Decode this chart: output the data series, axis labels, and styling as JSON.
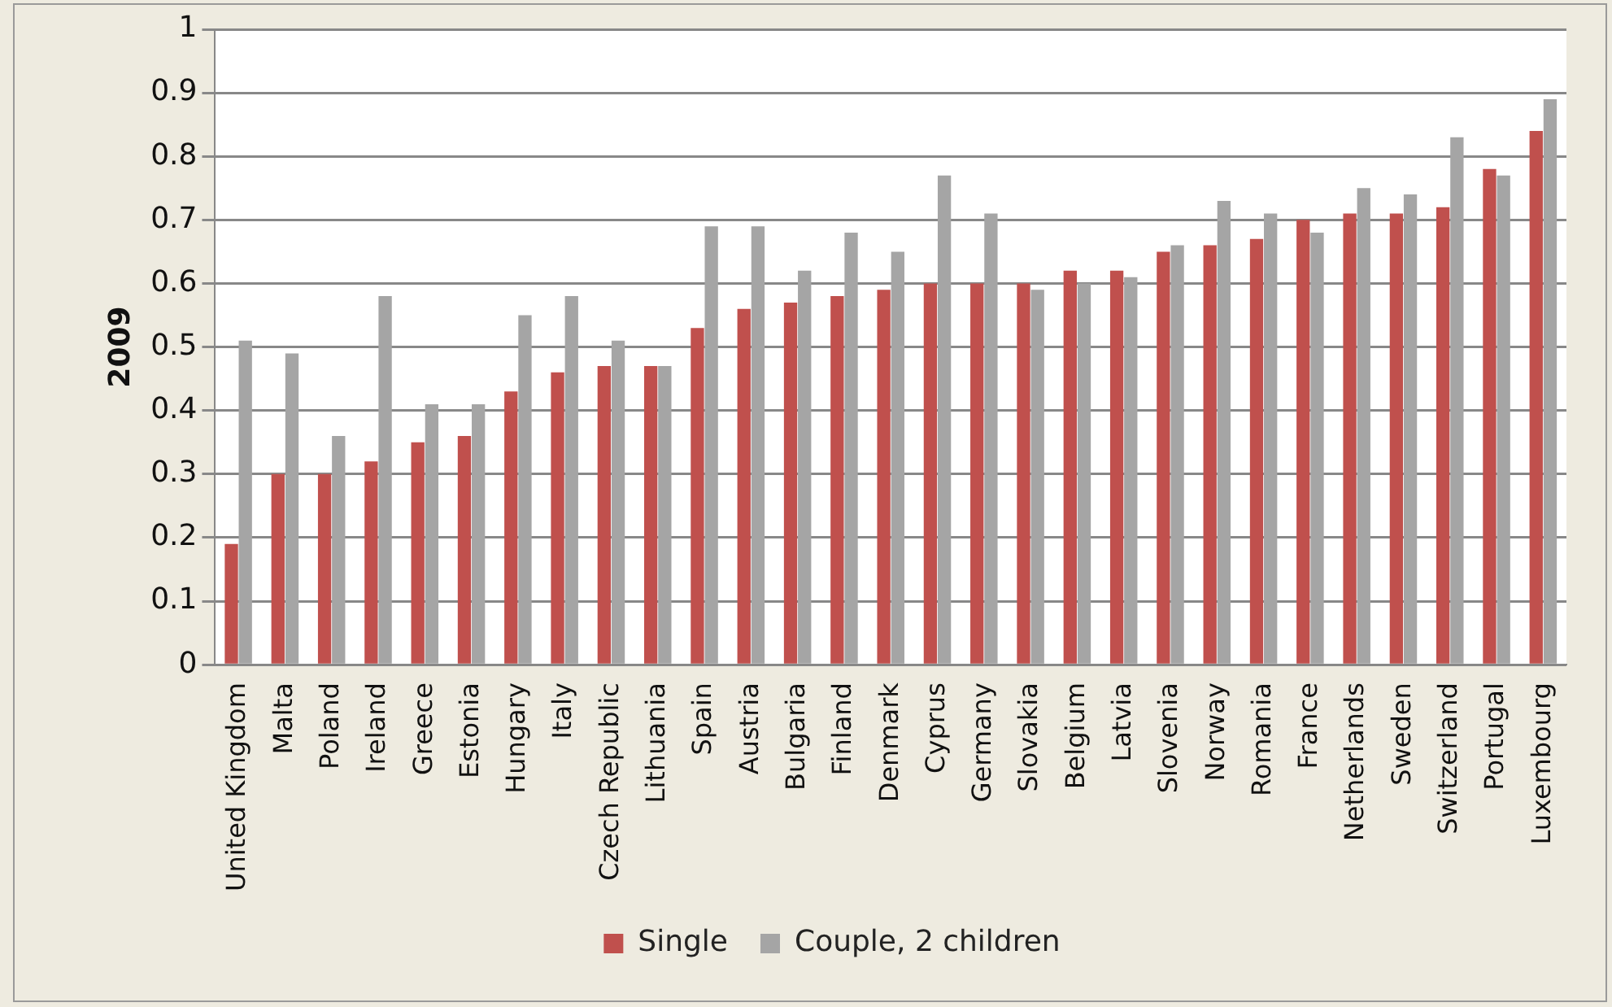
{
  "chart_data": {
    "type": "bar",
    "ylabel": "2009",
    "categories": [
      "United Kingdom",
      "Malta",
      "Poland",
      "Ireland",
      "Greece",
      "Estonia",
      "Hungary",
      "Italy",
      "Czech Republic",
      "Lithuania",
      "Spain",
      "Austria",
      "Bulgaria",
      "Finland",
      "Denmark",
      "Cyprus",
      "Germany",
      "Slovakia",
      "Belgium",
      "Latvia",
      "Slovenia",
      "Norway",
      "Romania",
      "France",
      "Netherlands",
      "Sweden",
      "Switzerland",
      "Portugal",
      "Luxembourg"
    ],
    "series": [
      {
        "name": "Single",
        "color": "#c0504d",
        "values": [
          0.19,
          0.3,
          0.3,
          0.32,
          0.35,
          0.36,
          0.43,
          0.46,
          0.47,
          0.47,
          0.53,
          0.56,
          0.57,
          0.58,
          0.59,
          0.6,
          0.6,
          0.6,
          0.62,
          0.62,
          0.65,
          0.66,
          0.67,
          0.7,
          0.71,
          0.71,
          0.72,
          0.78,
          0.84
        ]
      },
      {
        "name": "Couple, 2 children",
        "color": "#a5a5a5",
        "values": [
          0.51,
          0.49,
          0.36,
          0.58,
          0.41,
          0.41,
          0.55,
          0.58,
          0.51,
          0.47,
          0.69,
          0.69,
          0.62,
          0.68,
          0.65,
          0.77,
          0.71,
          0.59,
          0.6,
          0.61,
          0.66,
          0.73,
          0.71,
          0.68,
          0.75,
          0.74,
          0.83,
          0.77,
          0.89
        ]
      }
    ],
    "ylim": [
      0,
      1
    ],
    "yticks": [
      0,
      0.1,
      0.2,
      0.3,
      0.4,
      0.5,
      0.6,
      0.7,
      0.8,
      0.9,
      1
    ],
    "grid": "y",
    "legend": "bottom"
  }
}
